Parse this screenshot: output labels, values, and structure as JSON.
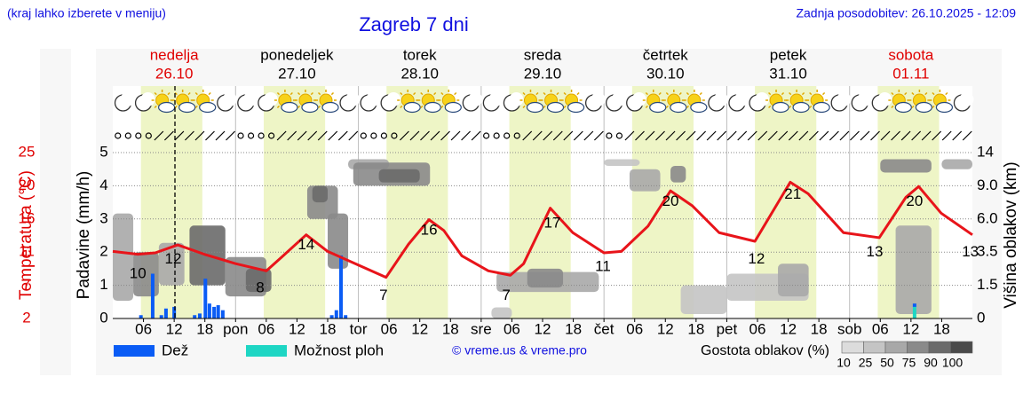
{
  "chart_data": {
    "type": "meteogram",
    "header_left": "(kraj lahko izberete v meniju)",
    "title": "Zagreb 7 dni",
    "updated": "Zadnja posodobitev: 26.10.2025 - 12:09",
    "days": [
      {
        "name": "nedelja",
        "date": "26.10",
        "color": "#e00000"
      },
      {
        "name": "ponedeljek",
        "date": "27.10",
        "color": "#000000"
      },
      {
        "name": "torek",
        "date": "28.10",
        "color": "#000000"
      },
      {
        "name": "sreda",
        "date": "29.10",
        "color": "#000000"
      },
      {
        "name": "četrtek",
        "date": "30.10",
        "color": "#000000"
      },
      {
        "name": "petek",
        "date": "31.10",
        "color": "#000000"
      },
      {
        "name": "sobota",
        "date": "01.11",
        "color": "#e00000"
      }
    ],
    "xlim": [
      0,
      168
    ],
    "xticks": [
      {
        "value": 6,
        "label": "06"
      },
      {
        "value": 12,
        "label": "12"
      },
      {
        "value": 18,
        "label": "18"
      },
      {
        "value": 24,
        "label": "pon"
      },
      {
        "value": 30,
        "label": "06"
      },
      {
        "value": 36,
        "label": "12"
      },
      {
        "value": 42,
        "label": "18"
      },
      {
        "value": 48,
        "label": "tor"
      },
      {
        "value": 54,
        "label": "06"
      },
      {
        "value": 60,
        "label": "12"
      },
      {
        "value": 66,
        "label": "18"
      },
      {
        "value": 72,
        "label": "sre"
      },
      {
        "value": 78,
        "label": "06"
      },
      {
        "value": 84,
        "label": "12"
      },
      {
        "value": 90,
        "label": "18"
      },
      {
        "value": 96,
        "label": "čet"
      },
      {
        "value": 102,
        "label": "06"
      },
      {
        "value": 108,
        "label": "12"
      },
      {
        "value": 114,
        "label": "18"
      },
      {
        "value": 120,
        "label": "pet"
      },
      {
        "value": 126,
        "label": "06"
      },
      {
        "value": 132,
        "label": "12"
      },
      {
        "value": 138,
        "label": "18"
      },
      {
        "value": 144,
        "label": "sob"
      },
      {
        "value": 150,
        "label": "06"
      },
      {
        "value": 156,
        "label": "12"
      },
      {
        "value": 162,
        "label": "18"
      }
    ],
    "daylight": [
      5.5,
      17.5
    ],
    "now": 12.15,
    "grid": true,
    "precip_axis": {
      "label": "Padavine (mm/h)",
      "ylim": [
        0,
        5
      ],
      "yticks": [
        0,
        1,
        2,
        3,
        4,
        5
      ]
    },
    "temp_axis": {
      "label": "Temperatura (°C)",
      "color": "#e00000",
      "ylim": [
        2,
        25
      ],
      "yticks": [
        2,
        {
          "value": 6.6,
          "label": "7"
        },
        {
          "value": 11.2,
          "label": "11"
        },
        {
          "value": 15.8,
          "label": "16"
        },
        {
          "value": 20.4,
          "label": "20"
        },
        25
      ]
    },
    "cloud_axis": {
      "label": "Višina oblakov (km)",
      "ylim": [
        0,
        14
      ],
      "yticks": [
        0,
        1.5,
        3.5,
        {
          "value": 6,
          "label": "6.0"
        },
        {
          "value": 9,
          "label": "9.0"
        },
        14
      ]
    },
    "temperature": {
      "color": "#e8141a",
      "x": [
        0,
        4.9,
        8.3,
        12.7,
        17.9,
        24,
        30,
        33,
        37.8,
        42,
        47.4,
        53.4,
        57.8,
        61.8,
        64.7,
        68.2,
        73.4,
        77.7,
        80.3,
        85.5,
        89.9,
        96,
        99.4,
        104.6,
        109,
        113.3,
        118.5,
        125.5,
        132.4,
        135.9,
        142.8,
        149.8,
        155,
        157.5,
        161.9,
        168
      ],
      "values": [
        11.3,
        10.9,
        11.1,
        12.2,
        10.9,
        9.6,
        8.6,
        10.5,
        13.6,
        11.3,
        9.6,
        7.7,
        12.3,
        15.7,
        14.2,
        10.7,
        8.6,
        8.0,
        9.6,
        17.3,
        13.9,
        11.1,
        11.3,
        14.8,
        19.7,
        17.6,
        13.9,
        12.7,
        20.9,
        19.3,
        13.9,
        13.2,
        18.8,
        20.3,
        16.6,
        13.6
      ]
    },
    "temp_labels": {
      "x": [
        4.9,
        11.8,
        28.8,
        37.8,
        52.9,
        61.8,
        76.9,
        85.9,
        95.8,
        109,
        125.8,
        132.9,
        148.9,
        156.7,
        167.6
      ],
      "values": [
        10,
        12,
        8,
        14,
        7,
        16,
        7,
        17,
        11,
        20,
        12,
        21,
        13,
        20,
        13
      ]
    },
    "series": [
      {
        "name": "Dež",
        "color": "#0a5cf5",
        "x": [
          5.5,
          7.8,
          9.5,
          10.4,
          12,
          16,
          17,
          18.1,
          18.9,
          19.8,
          20.6,
          21.5,
          42.8,
          43.7,
          44.6,
          45.5,
          156.7
        ],
        "values": [
          0.1,
          1.35,
          0.1,
          0.3,
          0.35,
          0.1,
          0.15,
          1.2,
          0.45,
          0.35,
          0.4,
          0.25,
          0.1,
          0.25,
          1.9,
          0.1,
          0.1
        ]
      },
      {
        "name": "Možnost ploh",
        "color": "#1ed6c4",
        "x": [
          156.7
        ],
        "values": [
          0.35
        ]
      }
    ],
    "clouds": {
      "label": "Gostota oblakov (%)",
      "levels": [
        10,
        25,
        50,
        75,
        90,
        100
      ],
      "colors": [
        "#dcdcdc",
        "#c4c4c4",
        "#a8a8a8",
        "#8a8a8a",
        "#6a6a6a",
        "#4a4a4a"
      ],
      "cells": [
        {
          "start": 0,
          "end": 4,
          "base": 0.8,
          "top": 6.5,
          "density": 50
        },
        {
          "start": 4,
          "end": 9,
          "base": 1.0,
          "top": 3.5,
          "density": 75
        },
        {
          "start": 9,
          "end": 14,
          "base": 1.5,
          "top": 4.2,
          "density": 50
        },
        {
          "start": 15,
          "end": 22,
          "base": 1.5,
          "top": 5.5,
          "density": 90
        },
        {
          "start": 22,
          "end": 30,
          "base": 1.0,
          "top": 3.2,
          "density": 75
        },
        {
          "start": 26,
          "end": 31,
          "base": 1.2,
          "top": 2.5,
          "density": 90
        },
        {
          "start": 38,
          "end": 44,
          "base": 6.0,
          "top": 9.0,
          "density": 75
        },
        {
          "start": 39,
          "end": 42,
          "base": 7.5,
          "top": 9.0,
          "density": 90
        },
        {
          "start": 42,
          "end": 46,
          "base": 2.5,
          "top": 6.5,
          "density": 75
        },
        {
          "start": 46,
          "end": 54,
          "base": 11.5,
          "top": 13,
          "density": 50
        },
        {
          "start": 47,
          "end": 62,
          "base": 9.0,
          "top": 12.5,
          "density": 75
        },
        {
          "start": 52,
          "end": 60,
          "base": 9.5,
          "top": 11.5,
          "density": 90
        },
        {
          "start": 74,
          "end": 78,
          "base": 0,
          "top": 0.5,
          "density": 25
        },
        {
          "start": 75,
          "end": 95,
          "base": 1.2,
          "top": 2.3,
          "density": 50
        },
        {
          "start": 81,
          "end": 88,
          "base": 1.4,
          "top": 2.5,
          "density": 75
        },
        {
          "start": 96,
          "end": 103,
          "base": 12,
          "top": 13,
          "density": 25
        },
        {
          "start": 101,
          "end": 107,
          "base": 8.5,
          "top": 11.5,
          "density": 50
        },
        {
          "start": 109,
          "end": 112,
          "base": 9.5,
          "top": 12,
          "density": 75
        },
        {
          "start": 111,
          "end": 120,
          "base": 0.2,
          "top": 1.5,
          "density": 25
        },
        {
          "start": 120,
          "end": 136,
          "base": 0.8,
          "top": 2.2,
          "density": 25
        },
        {
          "start": 130,
          "end": 136,
          "base": 1.0,
          "top": 2.8,
          "density": 50
        },
        {
          "start": 150,
          "end": 160,
          "base": 11,
          "top": 13,
          "density": 75
        },
        {
          "start": 153,
          "end": 160,
          "base": 0.2,
          "top": 5.5,
          "density": 50
        },
        {
          "start": 162,
          "end": 168,
          "base": 11.5,
          "top": 13,
          "density": 50
        }
      ]
    },
    "copyright": "© vreme.us & vreme.pro"
  }
}
